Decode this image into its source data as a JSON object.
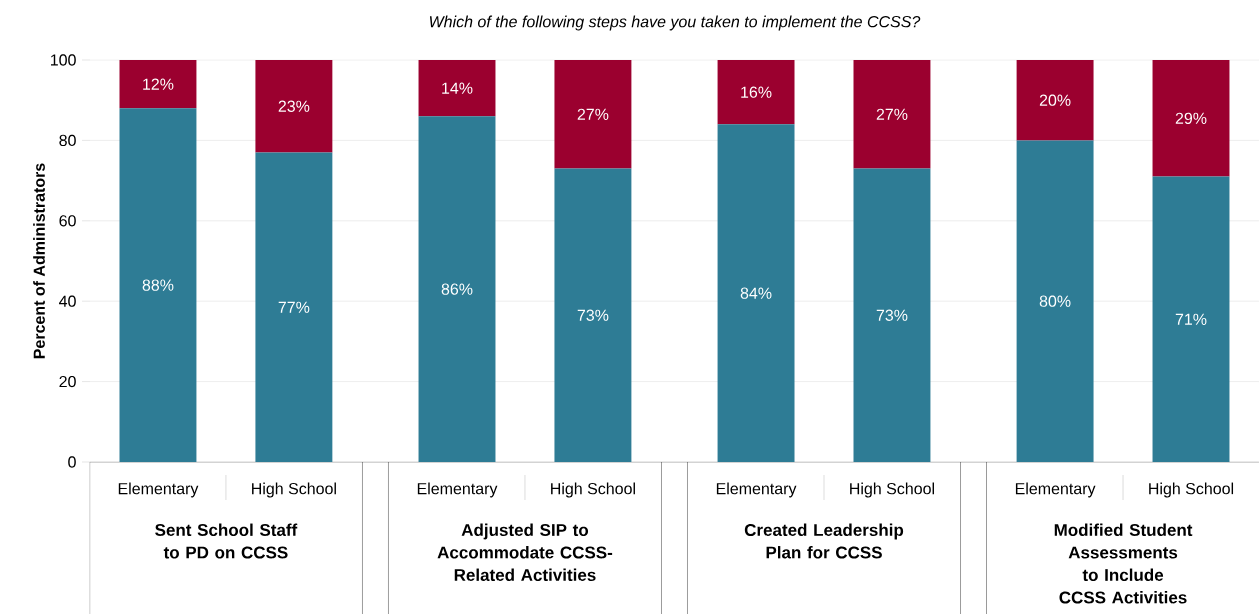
{
  "chart_data": {
    "type": "bar",
    "stacked": true,
    "title": "*Which of the following steps have you taken to implement the CCSS?*",
    "ylabel": "Percent of Administrators",
    "categories": [
      "Elementary",
      "High School",
      "Elementary",
      "High School",
      "Elementary",
      "High School",
      "Elementary",
      "High School"
    ],
    "series": [
      {
        "color": "#2e7c95",
        "values": [
          88,
          77,
          86,
          73,
          84,
          73,
          80,
          71
        ],
        "value_labels": [
          "88%",
          "77%",
          "86%",
          "73%",
          "84%",
          "73%",
          "80%",
          "71%"
        ]
      },
      {
        "color": "#9b002f",
        "values": [
          12,
          23,
          14,
          27,
          16,
          27,
          20,
          29
        ],
        "value_labels": [
          "12%",
          "23%",
          "14%",
          "27%",
          "16%",
          "27%",
          "20%",
          "29%"
        ]
      }
    ],
    "ylim": [
      0,
      100
    ],
    "yticks": [
      0,
      20,
      40,
      60,
      80,
      100
    ],
    "grid": "y",
    "annotations": [
      "Sent School Staff to PD on CCSS",
      "Adjusted SIP to Accommodate CCSS-Related Activities",
      "Created Leadership Plan for CCSS",
      "Modified Student Assessments to Include CCSS Activities"
    ]
  }
}
